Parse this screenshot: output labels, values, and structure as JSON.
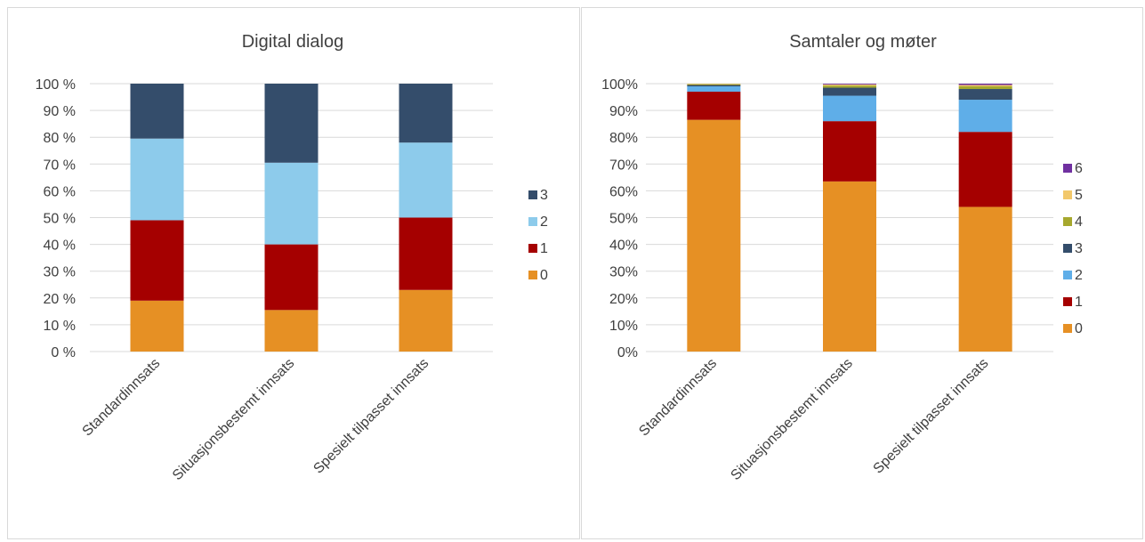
{
  "chart_data": [
    {
      "type": "bar",
      "stacked": true,
      "title": "Digital dialog",
      "categories": [
        "Standardinnsats",
        "Situasjonsbestemt innsats",
        "Spesielt tilpasset innsats"
      ],
      "y_ticks": [
        "0 %",
        "10 %",
        "20 %",
        "30 %",
        "40 %",
        "50 %",
        "60 %",
        "70 %",
        "80 %",
        "90 %",
        "100 %"
      ],
      "ylim": [
        0,
        100
      ],
      "grid": true,
      "legend_position": "right",
      "series": [
        {
          "name": "0",
          "color": "#E69024",
          "values": [
            19,
            15.5,
            23
          ]
        },
        {
          "name": "1",
          "color": "#A50000",
          "values": [
            30,
            24.5,
            27
          ]
        },
        {
          "name": "2",
          "color": "#8DCBEB",
          "values": [
            30.5,
            30.5,
            28
          ]
        },
        {
          "name": "3",
          "color": "#344D6B",
          "values": [
            20.5,
            29.5,
            22
          ]
        }
      ]
    },
    {
      "type": "bar",
      "stacked": true,
      "title": "Samtaler og møter",
      "categories": [
        "Standardinnsats",
        "Situasjonsbestemt innsats",
        "Spesielt tilpasset innsats"
      ],
      "y_ticks": [
        "0%",
        "10%",
        "20%",
        "30%",
        "40%",
        "50%",
        "60%",
        "70%",
        "80%",
        "90%",
        "100%"
      ],
      "ylim": [
        0,
        100
      ],
      "grid": true,
      "legend_position": "right",
      "series": [
        {
          "name": "0",
          "color": "#E69024",
          "values": [
            86.5,
            63.5,
            54
          ]
        },
        {
          "name": "1",
          "color": "#A50000",
          "values": [
            10.5,
            22.5,
            28
          ]
        },
        {
          "name": "2",
          "color": "#5FAEE8",
          "values": [
            2,
            9.5,
            12
          ]
        },
        {
          "name": "3",
          "color": "#344D6B",
          "values": [
            0.5,
            3,
            4
          ]
        },
        {
          "name": "4",
          "color": "#A6A82E",
          "values": [
            0.3,
            0.8,
            1
          ]
        },
        {
          "name": "5",
          "color": "#F2C86B",
          "values": [
            0.2,
            0.4,
            0.5
          ]
        },
        {
          "name": "6",
          "color": "#7030A0",
          "values": [
            0,
            0.3,
            0.5
          ]
        }
      ]
    }
  ]
}
